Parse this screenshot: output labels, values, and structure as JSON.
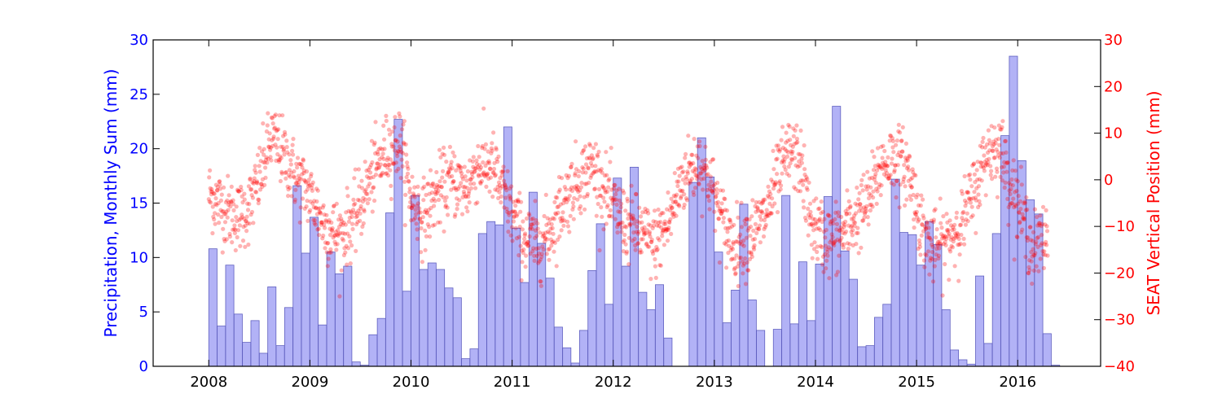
{
  "chart_data": {
    "type": "bar+scatter",
    "x_axis": {
      "ticks": [
        "2008",
        "2009",
        "2010",
        "2011",
        "2012",
        "2013",
        "2014",
        "2015",
        "2016"
      ]
    },
    "y_left": {
      "label": "Precipitation, Monthly Sum (mm)",
      "ylim": [
        0,
        30
      ],
      "ticks": [
        "0",
        "5",
        "10",
        "15",
        "20",
        "25",
        "30"
      ],
      "color": "#0000ff"
    },
    "y_right": {
      "label": "SEAT Vertical Position (mm)",
      "ylim": [
        -40,
        30
      ],
      "ticks": [
        "-40",
        "-30",
        "-20",
        "-10",
        "0",
        "10",
        "20",
        "30"
      ],
      "color": "#ff0000"
    },
    "precipitation_series": {
      "bar_color": "#aaaaf5",
      "bar_edge": "#6060c0",
      "start_month": "2008-01",
      "monthly_values": [
        10.8,
        3.7,
        9.3,
        4.8,
        2.2,
        4.2,
        1.2,
        7.3,
        1.9,
        5.4,
        16.6,
        10.4,
        13.7,
        3.8,
        10.5,
        8.5,
        9.2,
        0.4,
        0.1,
        2.9,
        4.4,
        14.1,
        22.7,
        6.9,
        15.7,
        8.9,
        9.5,
        8.9,
        7.2,
        6.3,
        0.7,
        1.6,
        12.2,
        13.3,
        13.0,
        22.0,
        12.7,
        7.7,
        16.0,
        11.3,
        8.1,
        3.6,
        1.7,
        0.3,
        3.3,
        8.8,
        13.1,
        5.7,
        17.3,
        9.2,
        18.3,
        6.8,
        5.2,
        7.5,
        2.6,
        0.0,
        0.0,
        16.9,
        21.0,
        17.4,
        10.5,
        4.0,
        7.0,
        14.9,
        6.1,
        3.3,
        0.0,
        3.4,
        15.7,
        3.9,
        9.6,
        4.2,
        9.4,
        15.6,
        23.9,
        10.6,
        8.0,
        1.8,
        1.9,
        4.5,
        5.7,
        17.2,
        12.3,
        12.1,
        9.3,
        13.3,
        11.2,
        5.2,
        1.5,
        0.6,
        0.2,
        8.3,
        2.1,
        12.2,
        21.2,
        28.5,
        18.9,
        15.3,
        14.0,
        3.0,
        0.1
      ]
    },
    "position_series": {
      "marker_color": "#ff0000",
      "marker_alpha": 0.3,
      "trend_points": [
        [
          2008.0,
          -3
        ],
        [
          2008.1,
          -5
        ],
        [
          2008.2,
          -7
        ],
        [
          2008.3,
          -8
        ],
        [
          2008.4,
          -6
        ],
        [
          2008.5,
          0
        ],
        [
          2008.62,
          9
        ],
        [
          2008.75,
          5
        ],
        [
          2008.88,
          0
        ],
        [
          2009.0,
          -3
        ],
        [
          2009.15,
          -10
        ],
        [
          2009.3,
          -12
        ],
        [
          2009.45,
          -8
        ],
        [
          2009.6,
          0
        ],
        [
          2009.75,
          6
        ],
        [
          2009.9,
          8
        ],
        [
          2010.0,
          -4
        ],
        [
          2010.12,
          -8
        ],
        [
          2010.25,
          -3
        ],
        [
          2010.4,
          0
        ],
        [
          2010.55,
          -2
        ],
        [
          2010.65,
          3
        ],
        [
          2010.8,
          3
        ],
        [
          2010.95,
          -5
        ],
        [
          2011.1,
          -12
        ],
        [
          2011.25,
          -14
        ],
        [
          2011.35,
          -12
        ],
        [
          2011.5,
          -5
        ],
        [
          2011.65,
          0
        ],
        [
          2011.8,
          3
        ],
        [
          2011.95,
          -4
        ],
        [
          2012.1,
          -9
        ],
        [
          2012.25,
          -11
        ],
        [
          2012.4,
          -14
        ],
        [
          2012.55,
          -9
        ],
        [
          2012.68,
          0
        ],
        [
          2012.85,
          4
        ],
        [
          2012.95,
          0
        ],
        [
          2013.1,
          -10
        ],
        [
          2013.2,
          -14
        ],
        [
          2013.35,
          -12
        ],
        [
          2013.5,
          -8
        ],
        [
          2013.62,
          0
        ],
        [
          2013.75,
          6
        ],
        [
          2013.85,
          4
        ],
        [
          2013.95,
          -9
        ],
        [
          2014.1,
          -13
        ],
        [
          2014.25,
          -12
        ],
        [
          2014.4,
          -8
        ],
        [
          2014.52,
          -5
        ],
        [
          2014.65,
          3
        ],
        [
          2014.78,
          5
        ],
        [
          2014.92,
          2
        ],
        [
          2015.05,
          -10
        ],
        [
          2015.15,
          -15
        ],
        [
          2015.3,
          -13
        ],
        [
          2015.45,
          -9
        ],
        [
          2015.58,
          -2
        ],
        [
          2015.7,
          6
        ],
        [
          2015.82,
          7
        ],
        [
          2015.95,
          -2
        ],
        [
          2016.05,
          -8
        ],
        [
          2016.15,
          -15
        ],
        [
          2016.25,
          -13
        ],
        [
          2016.3,
          -12
        ]
      ],
      "spread": 5
    }
  }
}
